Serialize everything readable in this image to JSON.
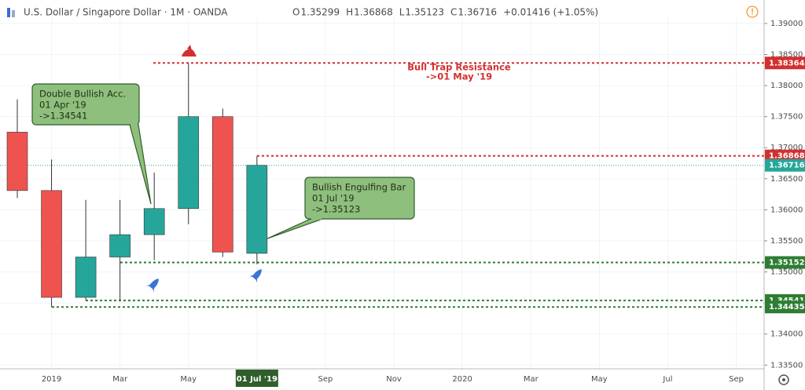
{
  "header": {
    "symbol": "U.S. Dollar / Singapore Dollar · 1M · OANDA",
    "ohlc": [
      {
        "key": "O",
        "value": "1.35299"
      },
      {
        "key": "H",
        "value": "1.36868"
      },
      {
        "key": "L",
        "value": "1.35123"
      },
      {
        "key": "C",
        "value": "1.36716"
      }
    ],
    "change": "+0.01416 (+1.05%)"
  },
  "chart_data": {
    "type": "candlestick",
    "categories": [
      null,
      "2019",
      null,
      "Mar",
      null,
      "May",
      null,
      "01 Jul '19",
      null,
      "Sep",
      null,
      "Nov",
      null,
      "2020",
      null,
      "Mar",
      null,
      "May",
      null,
      "Jul",
      null,
      "Sep"
    ],
    "open": [
      1.3725,
      1.3631,
      1.3459,
      1.3524,
      1.356,
      1.3602,
      1.375,
      1.35299,
      null,
      null,
      null,
      null,
      null,
      null,
      null,
      null,
      null,
      null,
      null,
      null,
      null,
      null
    ],
    "high": [
      1.3778,
      1.3681,
      1.3616,
      1.3616,
      1.366,
      1.3836,
      1.3763,
      1.36868,
      null,
      null,
      null,
      null,
      null,
      null,
      null,
      null,
      null,
      null,
      null,
      null,
      null,
      null
    ],
    "low": [
      1.3619,
      1.34435,
      1.3454,
      1.3454,
      1.3519,
      1.3577,
      1.3524,
      1.35123,
      null,
      null,
      null,
      null,
      null,
      null,
      null,
      null,
      null,
      null,
      null,
      null,
      null,
      null
    ],
    "close": [
      1.3631,
      1.3459,
      1.3524,
      1.356,
      1.3602,
      1.375,
      1.3532,
      1.36716,
      null,
      null,
      null,
      null,
      null,
      null,
      null,
      null,
      null,
      null,
      null,
      null,
      null,
      null
    ],
    "up_color": "#26a69a",
    "down_color": "#ef5350",
    "ylim": [
      1.3344,
      1.391
    ],
    "yticks": [
      {
        "value": 1.335,
        "label": "1.33500"
      },
      {
        "value": 1.34,
        "label": "1.34000"
      },
      {
        "value": 1.345,
        "label": "1.34500"
      },
      {
        "value": 1.35,
        "label": "1.35000"
      },
      {
        "value": 1.355,
        "label": "1.35500"
      },
      {
        "value": 1.36,
        "label": "1.36000"
      },
      {
        "value": 1.365,
        "label": "1.36500"
      },
      {
        "value": 1.37,
        "label": "1.37000"
      },
      {
        "value": 1.375,
        "label": "1.37500"
      },
      {
        "value": 1.38,
        "label": "1.38000"
      },
      {
        "value": 1.385,
        "label": "1.38500"
      },
      {
        "value": 1.39,
        "label": "1.39000"
      }
    ],
    "grid": true,
    "current_price": {
      "value": 1.36716,
      "color": "#26a69a"
    },
    "levels": [
      {
        "value": 1.38364,
        "color": "#d32f2f"
      },
      {
        "value": 1.36868,
        "color": "#d32f2f"
      },
      {
        "value": 1.35152,
        "color": "#2e7d32"
      },
      {
        "value": 1.34541,
        "color": "#2e7d32"
      },
      {
        "value": 1.34435,
        "color": "#2e7d32"
      }
    ],
    "annotations": [
      {
        "lines": [
          "Double Bullish Acc.",
          "01 Apr '19",
          "->1.34541"
        ]
      },
      {
        "lines": [
          "Bullish Engulfing Bar",
          "01 Jul '19",
          "->1.35123"
        ]
      },
      {
        "lines": [
          "Bull Trap Resistance",
          "->01 May '19"
        ]
      }
    ]
  }
}
